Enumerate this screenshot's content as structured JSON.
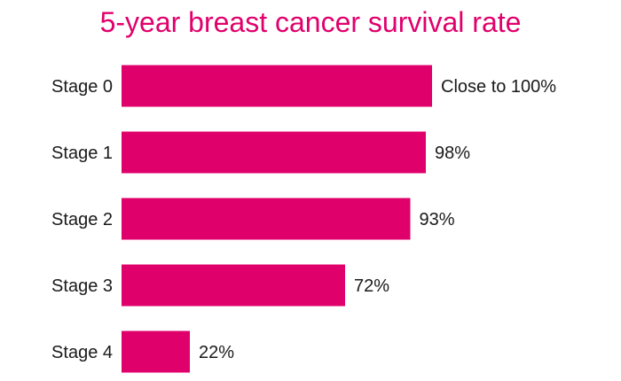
{
  "chart_data": {
    "type": "bar",
    "orientation": "horizontal",
    "title": "5-year breast cancer survival rate",
    "categories": [
      "Stage 0",
      "Stage 1",
      "Stage 2",
      "Stage 3",
      "Stage 4"
    ],
    "values": [
      100,
      98,
      93,
      72,
      22
    ],
    "data_labels": [
      "Close to 100%",
      "98%",
      "93%",
      "72%",
      "22%"
    ],
    "xlim": [
      0,
      100
    ],
    "grid": false,
    "legend": "none",
    "xlabel": "",
    "ylabel": ""
  },
  "colors": {
    "bar": "#e0006c",
    "title": "#e0006c",
    "text": "#1a1a1a"
  }
}
